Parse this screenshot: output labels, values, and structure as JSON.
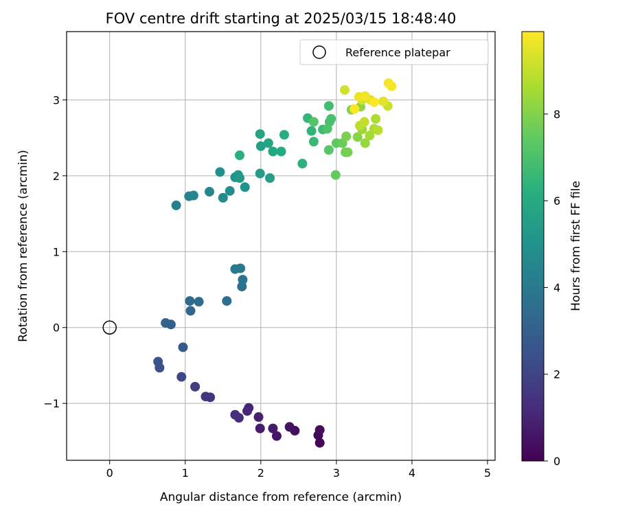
{
  "chart_data": {
    "type": "scatter",
    "title": "FOV centre drift starting at 2025/03/15 18:48:40",
    "xlabel": "Angular distance from reference (arcmin)",
    "ylabel": "Rotation from reference (arcmin)",
    "xlim": [
      -0.57,
      5.1
    ],
    "ylim": [
      -1.75,
      3.9
    ],
    "xticks": [
      0,
      1,
      2,
      3,
      4,
      5
    ],
    "yticks": [
      -1,
      0,
      1,
      2,
      3
    ],
    "grid": true,
    "legend": {
      "position": "top-right",
      "entries": [
        "Reference platepar"
      ]
    },
    "reference_point": {
      "x": 0,
      "y": 0
    },
    "colorbar": {
      "label": "Hours from first FF file",
      "colormap": "viridis",
      "range": [
        0,
        9.9
      ],
      "ticks": [
        0,
        2,
        4,
        6,
        8
      ]
    },
    "points": [
      {
        "x": 2.78,
        "y": -1.52,
        "t": 0.1
      },
      {
        "x": 2.76,
        "y": -1.42,
        "t": 0.2
      },
      {
        "x": 2.78,
        "y": -1.35,
        "t": 0.3
      },
      {
        "x": 2.45,
        "y": -1.36,
        "t": 0.4
      },
      {
        "x": 2.38,
        "y": -1.31,
        "t": 0.5
      },
      {
        "x": 2.21,
        "y": -1.43,
        "t": 0.6
      },
      {
        "x": 2.16,
        "y": -1.33,
        "t": 0.7
      },
      {
        "x": 1.99,
        "y": -1.33,
        "t": 0.8
      },
      {
        "x": 1.97,
        "y": -1.18,
        "t": 0.9
      },
      {
        "x": 1.84,
        "y": -1.06,
        "t": 1.0
      },
      {
        "x": 1.82,
        "y": -1.1,
        "t": 1.1
      },
      {
        "x": 1.71,
        "y": -1.19,
        "t": 1.2
      },
      {
        "x": 1.66,
        "y": -1.15,
        "t": 1.3
      },
      {
        "x": 1.33,
        "y": -0.92,
        "t": 1.5
      },
      {
        "x": 1.27,
        "y": -0.91,
        "t": 1.6
      },
      {
        "x": 1.13,
        "y": -0.78,
        "t": 1.8
      },
      {
        "x": 0.95,
        "y": -0.65,
        "t": 2.1
      },
      {
        "x": 0.66,
        "y": -0.53,
        "t": 2.4
      },
      {
        "x": 0.64,
        "y": -0.45,
        "t": 2.5
      },
      {
        "x": 0.97,
        "y": -0.26,
        "t": 2.8
      },
      {
        "x": 0.81,
        "y": 0.04,
        "t": 3.0
      },
      {
        "x": 0.74,
        "y": 0.06,
        "t": 3.1
      },
      {
        "x": 1.07,
        "y": 0.22,
        "t": 3.3
      },
      {
        "x": 1.06,
        "y": 0.35,
        "t": 3.4
      },
      {
        "x": 1.18,
        "y": 0.34,
        "t": 3.5
      },
      {
        "x": 1.55,
        "y": 0.35,
        "t": 3.6
      },
      {
        "x": 1.75,
        "y": 0.54,
        "t": 3.7
      },
      {
        "x": 1.76,
        "y": 0.63,
        "t": 3.8
      },
      {
        "x": 1.73,
        "y": 0.78,
        "t": 3.9
      },
      {
        "x": 1.66,
        "y": 0.77,
        "t": 4.0
      },
      {
        "x": 0.88,
        "y": 1.61,
        "t": 4.3
      },
      {
        "x": 1.05,
        "y": 1.73,
        "t": 4.4
      },
      {
        "x": 1.11,
        "y": 1.74,
        "t": 4.5
      },
      {
        "x": 1.32,
        "y": 1.79,
        "t": 4.6
      },
      {
        "x": 1.5,
        "y": 1.71,
        "t": 4.7
      },
      {
        "x": 1.59,
        "y": 1.8,
        "t": 4.8
      },
      {
        "x": 1.46,
        "y": 2.05,
        "t": 4.9
      },
      {
        "x": 1.79,
        "y": 1.85,
        "t": 5.0
      },
      {
        "x": 1.66,
        "y": 1.98,
        "t": 5.1
      },
      {
        "x": 1.7,
        "y": 2.01,
        "t": 5.2
      },
      {
        "x": 1.72,
        "y": 1.97,
        "t": 5.3
      },
      {
        "x": 1.99,
        "y": 2.03,
        "t": 5.4
      },
      {
        "x": 2.12,
        "y": 1.97,
        "t": 5.5
      },
      {
        "x": 2.0,
        "y": 2.39,
        "t": 5.6
      },
      {
        "x": 1.99,
        "y": 2.55,
        "t": 5.7
      },
      {
        "x": 2.1,
        "y": 2.43,
        "t": 5.8
      },
      {
        "x": 2.16,
        "y": 2.32,
        "t": 5.9
      },
      {
        "x": 2.27,
        "y": 2.32,
        "t": 6.0
      },
      {
        "x": 2.31,
        "y": 2.54,
        "t": 6.1
      },
      {
        "x": 1.72,
        "y": 2.27,
        "t": 6.2
      },
      {
        "x": 2.55,
        "y": 2.16,
        "t": 6.3
      },
      {
        "x": 2.67,
        "y": 2.59,
        "t": 6.4
      },
      {
        "x": 2.62,
        "y": 2.76,
        "t": 6.5
      },
      {
        "x": 2.7,
        "y": 2.45,
        "t": 6.6
      },
      {
        "x": 2.82,
        "y": 2.61,
        "t": 6.7
      },
      {
        "x": 2.9,
        "y": 2.92,
        "t": 6.8
      },
      {
        "x": 2.91,
        "y": 2.71,
        "t": 6.9
      },
      {
        "x": 2.93,
        "y": 2.75,
        "t": 7.0
      },
      {
        "x": 2.88,
        "y": 2.62,
        "t": 7.1
      },
      {
        "x": 2.7,
        "y": 2.71,
        "t": 7.2
      },
      {
        "x": 2.9,
        "y": 2.34,
        "t": 7.3
      },
      {
        "x": 3.0,
        "y": 2.43,
        "t": 7.4
      },
      {
        "x": 2.99,
        "y": 2.01,
        "t": 7.5
      },
      {
        "x": 3.08,
        "y": 2.43,
        "t": 7.6
      },
      {
        "x": 3.12,
        "y": 2.31,
        "t": 7.7
      },
      {
        "x": 3.15,
        "y": 2.31,
        "t": 7.8
      },
      {
        "x": 3.13,
        "y": 2.52,
        "t": 7.9
      },
      {
        "x": 3.2,
        "y": 2.87,
        "t": 8.0
      },
      {
        "x": 3.28,
        "y": 2.51,
        "t": 8.1
      },
      {
        "x": 3.32,
        "y": 2.91,
        "t": 8.2
      },
      {
        "x": 3.38,
        "y": 2.43,
        "t": 8.3
      },
      {
        "x": 3.34,
        "y": 2.61,
        "t": 8.4
      },
      {
        "x": 3.44,
        "y": 2.53,
        "t": 8.5
      },
      {
        "x": 3.5,
        "y": 2.62,
        "t": 8.6
      },
      {
        "x": 3.52,
        "y": 2.75,
        "t": 8.7
      },
      {
        "x": 3.55,
        "y": 2.6,
        "t": 8.8
      },
      {
        "x": 3.31,
        "y": 2.66,
        "t": 8.9
      },
      {
        "x": 3.37,
        "y": 2.71,
        "t": 9.0
      },
      {
        "x": 3.68,
        "y": 2.92,
        "t": 9.1
      },
      {
        "x": 3.11,
        "y": 3.13,
        "t": 9.2
      },
      {
        "x": 3.34,
        "y": 3.0,
        "t": 9.3
      },
      {
        "x": 3.45,
        "y": 3.0,
        "t": 9.4
      },
      {
        "x": 3.62,
        "y": 2.98,
        "t": 9.5
      },
      {
        "x": 3.3,
        "y": 3.04,
        "t": 9.6
      },
      {
        "x": 3.38,
        "y": 3.05,
        "t": 9.7
      },
      {
        "x": 3.69,
        "y": 3.22,
        "t": 9.75
      },
      {
        "x": 3.73,
        "y": 3.18,
        "t": 9.8
      },
      {
        "x": 3.24,
        "y": 2.88,
        "t": 9.85
      },
      {
        "x": 3.5,
        "y": 2.97,
        "t": 9.9
      }
    ]
  }
}
